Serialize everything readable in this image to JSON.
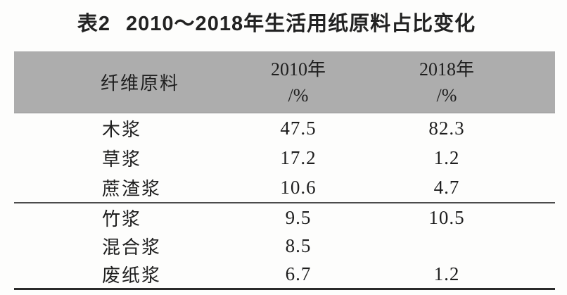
{
  "caption": {
    "label": "表2",
    "title": "2010～2018年生活用纸原料占比变化"
  },
  "table": {
    "header": {
      "material": "纤维原料",
      "col2010": {
        "line1": "2010年",
        "line2": "/%"
      },
      "col2018": {
        "line1": "2018年",
        "line2": "/%"
      },
      "band_color": "#adadad"
    },
    "rows": [
      {
        "material": "木浆",
        "v2010": "47.5",
        "v2018": "82.3"
      },
      {
        "material": "草浆",
        "v2010": "17.2",
        "v2018": "1.2"
      },
      {
        "material": "蔗渣浆",
        "v2010": "10.6",
        "v2018": "4.7"
      },
      {
        "material": "竹浆",
        "v2010": "9.5",
        "v2018": "10.5"
      },
      {
        "material": "混合浆",
        "v2010": "8.5",
        "v2018": ""
      },
      {
        "material": "废纸浆",
        "v2010": "6.7",
        "v2018": "1.2"
      }
    ]
  },
  "chart_data": {
    "type": "table",
    "title": "表2 2010～2018年生活用纸原料占比变化",
    "columns": [
      "纤维原料",
      "2010年/%",
      "2018年/%"
    ],
    "categories": [
      "木浆",
      "草浆",
      "蔗渣浆",
      "竹浆",
      "混合浆",
      "废纸浆"
    ],
    "series": [
      {
        "name": "2010年/%",
        "values": [
          47.5,
          17.2,
          10.6,
          9.5,
          8.5,
          6.7
        ]
      },
      {
        "name": "2018年/%",
        "values": [
          82.3,
          1.2,
          4.7,
          10.5,
          null,
          1.2
        ]
      }
    ]
  },
  "colors": {
    "header_band": "#adadad",
    "text": "#1e1e1e",
    "rule": "#2b2b2b",
    "background": "#fdfdfc"
  }
}
